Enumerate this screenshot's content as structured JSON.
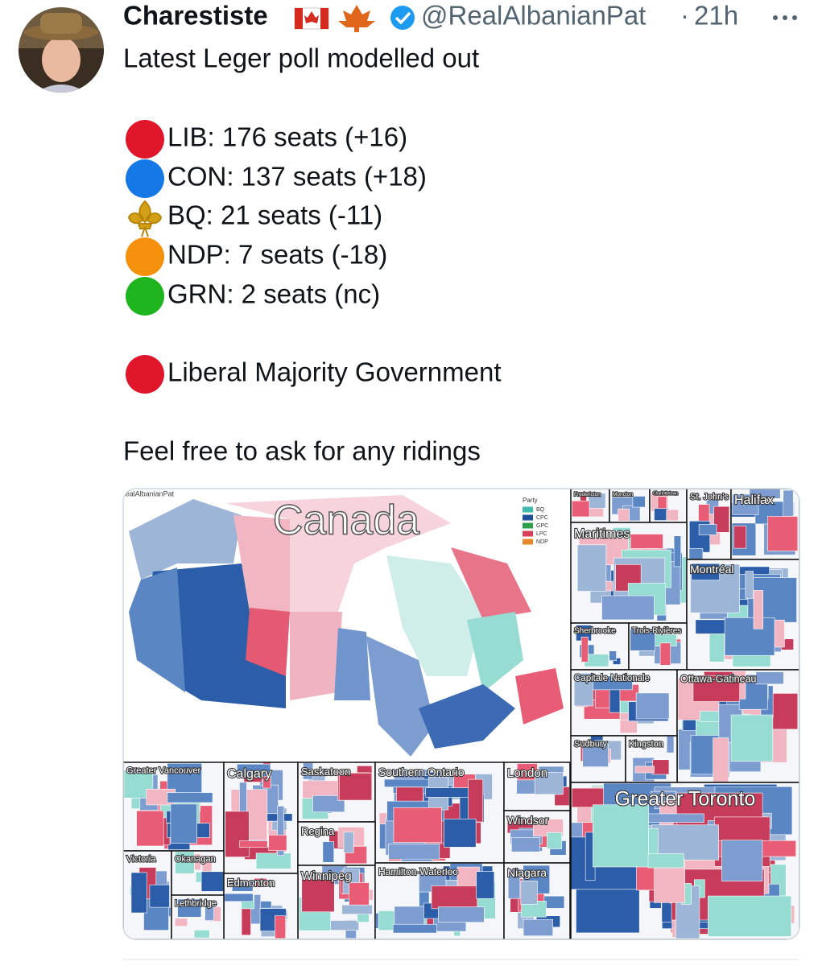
{
  "tweet": {
    "author_name": "Charestiste",
    "handle": "@RealAlbanianPat",
    "separator": "·",
    "time": "21h",
    "lines": [
      "Latest Leger poll modelled out",
      "LIB: 176 seats (+16)",
      "CON: 137 seats (+18)",
      "BQ: 21 seats (-11)",
      "NDP: 7 seats (-18)",
      "GRN: 2 seats (nc)",
      "Liberal Majority Government",
      "Feel free to ask for any ridings"
    ]
  },
  "map": {
    "watermark": "@RealAlbanianPat",
    "title": "Canada",
    "legend": {
      "title": "Party",
      "items": [
        {
          "label": "BQ",
          "color": "#3fb8ad"
        },
        {
          "label": "CPC",
          "color": "#1f4f9a"
        },
        {
          "label": "GPC",
          "color": "#2e9e4a"
        },
        {
          "label": "LPC",
          "color": "#d6405a"
        },
        {
          "label": "NDP",
          "color": "#e8872a"
        }
      ]
    },
    "regions": [
      "Fredericton",
      "Moncton",
      "Charlottetown",
      "St. John's",
      "Halifax",
      "Maritimes",
      "Montréal",
      "Sherbrooke",
      "Trois-Rivières",
      "Capitale Nationale",
      "Ottawa-Gatineau",
      "Sudbury",
      "Kingston",
      "Greater Toronto",
      "Greater Vancouver",
      "Calgary",
      "Saskatoon",
      "Southern Ontario",
      "London",
      "Windsor",
      "Regina",
      "Victoria",
      "Okanagan",
      "Winnipeg",
      "Hamilton-Waterloo",
      "Niagara",
      "Edmonton",
      "Lethbridge"
    ]
  }
}
